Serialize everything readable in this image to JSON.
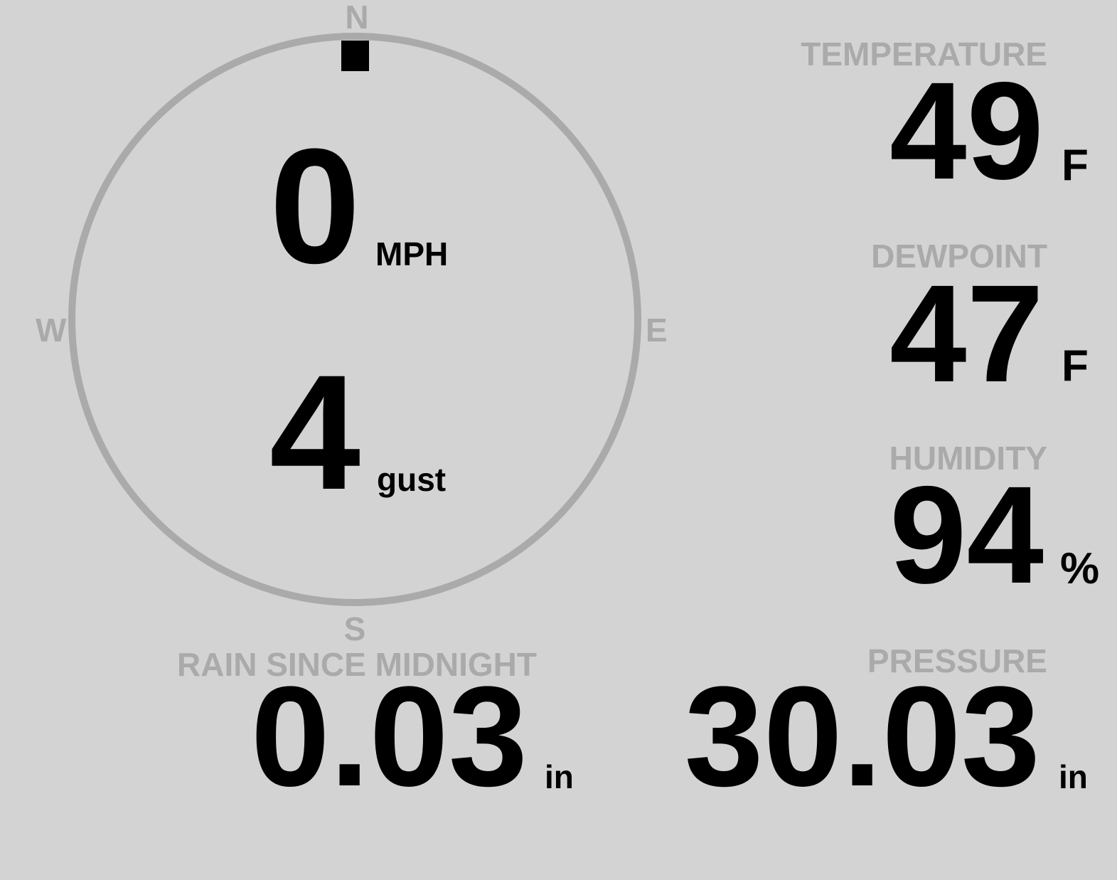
{
  "colors": {
    "background": "#d3d3d3",
    "label": "#aaaaaa",
    "value": "#000000"
  },
  "wind": {
    "compass": {
      "north": "N",
      "east": "E",
      "south": "S",
      "west": "W"
    },
    "direction_degrees": 0,
    "speed": "0",
    "speed_unit": "MPH",
    "gust": "4",
    "gust_unit": "gust"
  },
  "temperature": {
    "label": "TEMPERATURE",
    "value": "49",
    "unit": "F"
  },
  "dewpoint": {
    "label": "DEWPOINT",
    "value": "47",
    "unit": "F"
  },
  "humidity": {
    "label": "HUMIDITY",
    "value": "94",
    "unit": "%"
  },
  "rain": {
    "label": "RAIN SINCE MIDNIGHT",
    "value": "0.03",
    "unit": "in"
  },
  "pressure": {
    "label": "PRESSURE",
    "value": "30.03",
    "unit": "in"
  }
}
